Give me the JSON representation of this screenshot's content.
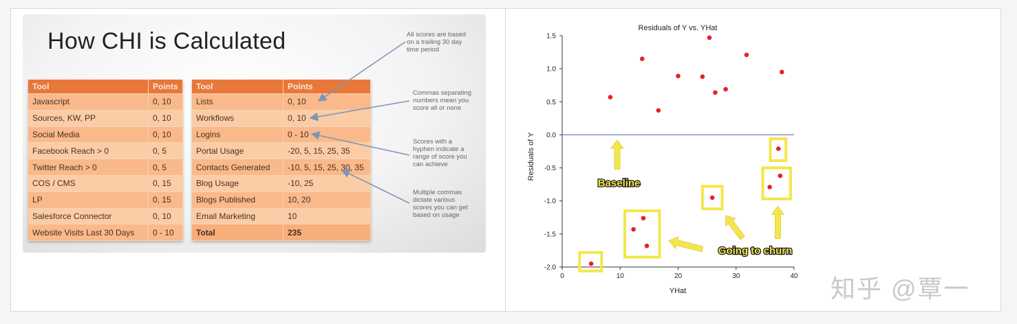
{
  "slide": {
    "title": "How CHI is Calculated",
    "table_left": {
      "headers": [
        "Tool",
        "Points"
      ],
      "rows": [
        [
          "Javascript",
          "0, 10"
        ],
        [
          "Sources, KW, PP",
          "0, 10"
        ],
        [
          "Social Media",
          "0, 10"
        ],
        [
          "Facebook Reach > 0",
          "0, 5"
        ],
        [
          "Twitter Reach > 0",
          "0, 5"
        ],
        [
          "COS / CMS",
          "0, 15"
        ],
        [
          "LP",
          "0, 15"
        ],
        [
          "Salesforce Connector",
          "0, 10"
        ],
        [
          "Website Visits Last 30 Days",
          "0 - 10"
        ]
      ]
    },
    "table_right": {
      "headers": [
        "Tool",
        "Points"
      ],
      "rows": [
        [
          "Lists",
          "0, 10"
        ],
        [
          "Workflows",
          "0, 10"
        ],
        [
          "Logins",
          "0 - 10"
        ],
        [
          "Portal Usage",
          "-20, 5, 15, 25, 35"
        ],
        [
          "Contacts Generated",
          "-10, 5, 15, 25, 30, 35"
        ],
        [
          "Blog Usage",
          "-10, 25"
        ],
        [
          "Blogs Published",
          "10, 20"
        ],
        [
          "Email Marketing",
          "10"
        ],
        [
          "Total",
          "235"
        ]
      ]
    },
    "notes": [
      [
        "All scores are based",
        "on a trailing 30 day",
        "time period"
      ],
      [
        "Commas separating",
        "numbers mean you",
        "score all or none"
      ],
      [
        "Scores with a",
        "hyphen indicate a",
        "range of score you",
        "can achieve"
      ],
      [
        "Multiple commas",
        "dictate various",
        "scores you can get",
        "based on usage"
      ]
    ]
  },
  "chart_data": {
    "type": "scatter",
    "title": "Residuals of Y vs. YHat",
    "xlabel": "YHat",
    "ylabel": "Residuals of Y",
    "xlim": [
      0,
      40
    ],
    "ylim": [
      -2.0,
      1.5
    ],
    "xticks": [
      "0",
      "10",
      "20",
      "30",
      "40"
    ],
    "yticks": [
      "1.5",
      "1.0",
      "0.5",
      "0.0",
      "-0.5",
      "-1.0",
      "-1.5",
      "-2.0"
    ],
    "baseline_y": 0.0,
    "point_color": "#e8202a",
    "points": [
      {
        "x": 5,
        "y": -1.95
      },
      {
        "x": 8.3,
        "y": 0.57
      },
      {
        "x": 12.3,
        "y": -1.43
      },
      {
        "x": 13.8,
        "y": 1.15
      },
      {
        "x": 14,
        "y": -1.26
      },
      {
        "x": 14.6,
        "y": -1.68
      },
      {
        "x": 16.6,
        "y": 0.37
      },
      {
        "x": 20,
        "y": 0.89
      },
      {
        "x": 24.2,
        "y": 0.88
      },
      {
        "x": 25.4,
        "y": 1.47
      },
      {
        "x": 25.9,
        "y": -0.95
      },
      {
        "x": 26.4,
        "y": 0.64
      },
      {
        "x": 28.2,
        "y": 0.69
      },
      {
        "x": 31.8,
        "y": 1.21
      },
      {
        "x": 35.8,
        "y": -0.79
      },
      {
        "x": 37.3,
        "y": -0.21
      },
      {
        "x": 37.6,
        "y": -0.62
      },
      {
        "x": 37.9,
        "y": 0.95
      }
    ],
    "highlight_boxes": [
      {
        "x0": 3,
        "x1": 6.8,
        "y0": -2.06,
        "y1": -1.78
      },
      {
        "x0": 10.8,
        "x1": 16.8,
        "y0": -1.85,
        "y1": -1.15
      },
      {
        "x0": 24.2,
        "x1": 27.6,
        "y0": -1.12,
        "y1": -0.78
      },
      {
        "x0": 34.6,
        "x1": 39.4,
        "y0": -0.97,
        "y1": -0.5
      },
      {
        "x0": 35.9,
        "x1": 38.6,
        "y0": -0.39,
        "y1": -0.06
      }
    ],
    "annotations": [
      {
        "text": "Baseline",
        "x": 9.8,
        "y": -0.73
      },
      {
        "text": "Going to churn",
        "x": 33.3,
        "y": -1.75
      }
    ],
    "annotation_color": "#f3e64a"
  },
  "watermark": "知乎 @覃一"
}
